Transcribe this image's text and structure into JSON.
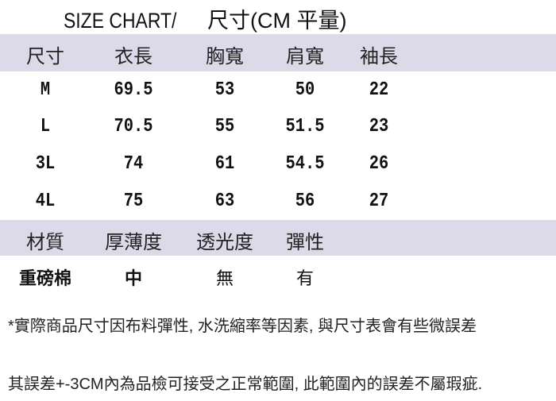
{
  "title": {
    "en": "SIZE CHART/",
    "zh": "尺寸(CM 平量)"
  },
  "size_table": {
    "headers": [
      "尺寸",
      "衣長",
      "胸寬",
      "肩寬",
      "袖長"
    ],
    "rows": [
      [
        "M",
        "69.5",
        "53",
        "50",
        "22"
      ],
      [
        "L",
        "70.5",
        "55",
        "51.5",
        "23"
      ],
      [
        "3L",
        "74",
        "61",
        "54.5",
        "26"
      ],
      [
        "4L",
        "75",
        "63",
        "56",
        "27"
      ]
    ]
  },
  "material_table": {
    "headers": [
      "材質",
      "厚薄度",
      "透光度",
      "彈性"
    ],
    "values": [
      "重磅棉",
      "中",
      "無",
      "有"
    ]
  },
  "notes": {
    "line1": "*實際商品尺寸因布料彈性, 水洗縮率等因素, 與尺寸表會有些微誤差",
    "line2": "其誤差+-3CM內為品檢可接受之正常範圍, 此範圍內的誤差不屬瑕疵."
  },
  "colors": {
    "header_band": "#dcd9e8"
  }
}
